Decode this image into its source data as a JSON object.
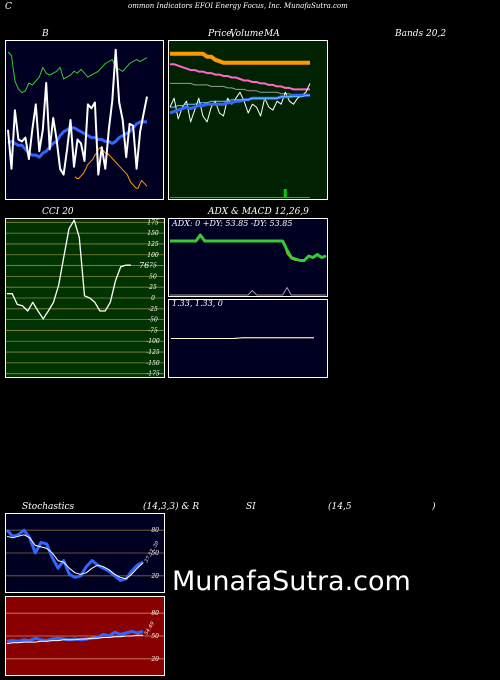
{
  "header": {
    "c": "C",
    "title": "ommon  Indicators EFOI Energy Focus, Inc. MunafaSutra.com"
  },
  "labels": {
    "b": "B",
    "price": "Price,",
    "volume": "Volume",
    "ma": "MA",
    "bands": "Bands 20,2",
    "cci": "CCI 20",
    "adx": "ADX  & MACD 12,26,9",
    "adx_values": "ADX: 0  +DY: 53.85 -DY: 53.85",
    "macd_values": "1.33,  1.33,  0",
    "stoch_a": "Stochastics",
    "stoch_b": "(14,3,3) & R",
    "stoch_c": "SI",
    "stoch_d": "(14,5",
    "stoch_e": ")"
  },
  "watermark": "MunafaSutra.com",
  "colors": {
    "navy_bg": "#000022",
    "green_bg": "#002200",
    "olive_bg": "#003300",
    "red_bg": "#880000",
    "white_line": "#ffffff",
    "blue_line": "#3366ff",
    "green_line": "#33cc33",
    "orange_line": "#ff9900",
    "pink_line": "#ff66cc"
  },
  "chart_data": [
    {
      "id": "bands",
      "type": "line",
      "title": "B",
      "series": [
        {
          "values": [
            150,
            146,
            120,
            112,
            108,
            110,
            118,
            116,
            120,
            124,
            134,
            128,
            126,
            128,
            130,
            134,
            122,
            124,
            126,
            130,
            128,
            132,
            128,
            124,
            126,
            128,
            130,
            134,
            138,
            140,
            142,
            134,
            132,
            130,
            134,
            138,
            140,
            142,
            140,
            142,
            144
          ]
        },
        {
          "values": [
            70,
            30,
            90,
            60,
            58,
            62,
            40,
            70,
            96,
            48,
            70,
            118,
            50,
            82,
            60,
            30,
            24,
            50,
            80,
            32,
            60,
            56,
            38,
            96,
            92,
            98,
            24,
            52,
            30,
            70,
            100,
            152,
            98,
            80,
            42,
            76,
            74,
            30,
            68,
            86,
            104
          ]
        },
        {
          "values": [
            56,
            58,
            56,
            54,
            54,
            50,
            46,
            44,
            44,
            42,
            46,
            48,
            52,
            56,
            58,
            64,
            68,
            70,
            72,
            72,
            70,
            68,
            66,
            64,
            62,
            62,
            60,
            60,
            58,
            58,
            56,
            58,
            62,
            64,
            66,
            68,
            72,
            76,
            78,
            78,
            78
          ]
        },
        {
          "values": [
            22,
            20,
            20,
            22,
            24,
            26,
            30,
            34,
            36,
            38,
            40,
            44,
            46,
            50,
            52,
            50,
            48,
            46,
            46,
            44,
            42,
            40,
            38,
            36,
            34,
            32,
            30,
            28,
            26,
            24,
            20,
            16,
            14,
            12,
            10,
            10,
            14,
            18,
            16,
            14,
            12
          ]
        }
      ]
    },
    {
      "id": "price_ma",
      "type": "line",
      "title": "Price,  Volume  MA",
      "series": [
        {
          "values": [
            92,
            92,
            92,
            92,
            92,
            92,
            92,
            92,
            92,
            90,
            90,
            88,
            87,
            86,
            86,
            86,
            86,
            86,
            86,
            86,
            86,
            86,
            86,
            86,
            86,
            86,
            86,
            86,
            86,
            86,
            86,
            86,
            86,
            86,
            86
          ]
        },
        {
          "values": [
            85,
            85,
            84,
            83,
            82,
            81,
            81,
            80,
            80,
            79,
            79,
            78,
            78,
            77,
            77,
            76,
            76,
            75,
            74,
            74,
            73,
            73,
            72,
            72,
            71,
            71,
            70,
            70,
            69,
            69,
            68,
            68,
            68,
            68,
            68
          ]
        },
        {
          "values": [
            72,
            72,
            72,
            72,
            72,
            72,
            71,
            71,
            71,
            71,
            70,
            70,
            70,
            70,
            69,
            69,
            68,
            68,
            68,
            67,
            67,
            67,
            66,
            66,
            66,
            66,
            66,
            65,
            65,
            65,
            64,
            64,
            64,
            64,
            64
          ]
        },
        {
          "values": [
            56,
            62,
            48,
            56,
            60,
            46,
            54,
            62,
            50,
            46,
            56,
            60,
            52,
            50,
            62,
            58,
            62,
            66,
            60,
            52,
            58,
            56,
            50,
            62,
            56,
            54,
            60,
            58,
            66,
            60,
            58,
            62,
            64,
            66,
            72
          ]
        },
        {
          "values": [
            52,
            53,
            54,
            55,
            56,
            55,
            56,
            57,
            57,
            58,
            58,
            58,
            58,
            58,
            59,
            59,
            60,
            60,
            61,
            61,
            62,
            62,
            62,
            62,
            62,
            62,
            62,
            63,
            63,
            63,
            64,
            64,
            64,
            64,
            64
          ]
        },
        {
          "values": [
            56,
            56,
            57,
            57,
            58,
            58,
            58,
            59,
            59,
            59,
            60,
            60,
            60,
            60,
            60,
            61,
            61,
            61,
            61,
            61,
            62,
            62,
            62,
            62,
            62,
            62,
            62,
            63,
            63,
            63,
            63,
            63,
            63,
            64,
            64
          ]
        }
      ],
      "volume": [
        0,
        0,
        0,
        0,
        0,
        0,
        0,
        0,
        0,
        0,
        0,
        0,
        0,
        0,
        0,
        0,
        0,
        0,
        0,
        0,
        0,
        0,
        0,
        0,
        0,
        0,
        0,
        0,
        3,
        0,
        0,
        0,
        0,
        0,
        0
      ]
    },
    {
      "id": "cci",
      "type": "line",
      "title": "CCI 20",
      "ticks": [
        175,
        150,
        125,
        100,
        75,
        50,
        25,
        0,
        -25,
        -50,
        -75,
        -100,
        -125,
        -150,
        -175
      ],
      "ylim": [
        -185,
        185
      ],
      "last_label": "76",
      "series": [
        {
          "values": [
            10,
            10,
            -15,
            -18,
            -30,
            -10,
            -30,
            -48,
            -30,
            -10,
            30,
            95,
            160,
            180,
            140,
            5,
            0,
            -10,
            -30,
            -30,
            -10,
            40,
            72,
            76,
            76
          ]
        }
      ]
    },
    {
      "id": "adx",
      "type": "line",
      "title": "ADX  & MACD 12,26,9",
      "ylim": [
        0,
        100
      ],
      "series": [
        {
          "values": [
            72,
            72,
            72,
            72,
            72,
            72,
            72,
            80,
            72,
            72,
            72,
            72,
            72,
            72,
            72,
            72,
            72,
            72,
            72,
            72,
            72,
            72,
            72,
            72,
            72,
            72,
            72,
            60,
            50,
            48,
            46,
            46,
            52,
            50,
            54,
            50,
            52
          ]
        },
        {
          "values": [
            72,
            72,
            72,
            72,
            72,
            72,
            72,
            80,
            72,
            72,
            72,
            72,
            72,
            72,
            72,
            72,
            72,
            72,
            72,
            72,
            72,
            72,
            72,
            72,
            72,
            72,
            72,
            55,
            48,
            46,
            46,
            46,
            52,
            50,
            54,
            50,
            52
          ]
        },
        {
          "values": [
            0,
            0,
            0,
            0,
            0,
            0,
            0,
            0,
            0,
            0,
            0,
            0,
            0,
            0,
            0,
            0,
            0,
            0,
            0,
            6,
            0,
            0,
            0,
            0,
            0,
            0,
            0,
            10,
            0,
            0,
            0,
            0,
            0,
            0,
            0,
            0,
            0
          ]
        }
      ]
    },
    {
      "id": "macd",
      "type": "line",
      "ylim": [
        -1,
        1
      ],
      "series": [
        {
          "values": [
            0,
            0,
            0,
            0,
            0,
            0,
            0,
            0,
            0.02,
            0.02,
            0.02,
            0.02,
            0.02,
            0.02,
            0.02,
            0.02,
            0.02
          ]
        },
        {
          "values": [
            0,
            0,
            0,
            0,
            0,
            0,
            0,
            0,
            0.02,
            0.02,
            0.02,
            0.02,
            0.02,
            0.02,
            0.02,
            0.02,
            0.02
          ]
        }
      ]
    },
    {
      "id": "stochastics",
      "type": "line",
      "ticks": [
        80,
        50,
        20
      ],
      "ylim": [
        0,
        100
      ],
      "annotation": "37.57, 30",
      "series": [
        {
          "values": [
            80,
            72,
            74,
            80,
            70,
            50,
            64,
            62,
            44,
            30,
            40,
            22,
            18,
            20,
            32,
            40,
            34,
            30,
            26,
            20,
            14,
            16,
            26,
            34,
            38
          ]
        },
        {
          "values": [
            72,
            70,
            72,
            74,
            70,
            60,
            58,
            56,
            50,
            40,
            38,
            30,
            24,
            22,
            24,
            30,
            34,
            32,
            28,
            22,
            18,
            16,
            22,
            30,
            37
          ]
        }
      ]
    },
    {
      "id": "rsi",
      "type": "line",
      "ticks": [
        80,
        50,
        20
      ],
      "ylim": [
        0,
        100
      ],
      "annotation": "54.49",
      "series": [
        {
          "values": [
            43,
            44,
            43,
            45,
            44,
            47,
            45,
            44,
            46,
            47,
            46,
            45,
            46,
            45,
            46,
            47,
            48,
            52,
            50,
            55,
            52,
            54,
            56,
            54,
            56
          ]
        },
        {
          "values": [
            40,
            41,
            41,
            42,
            42,
            42,
            43,
            43,
            44,
            44,
            45,
            45,
            45,
            46,
            46,
            47,
            47,
            48,
            48,
            49,
            49,
            50,
            50,
            51,
            51
          ]
        }
      ]
    }
  ]
}
